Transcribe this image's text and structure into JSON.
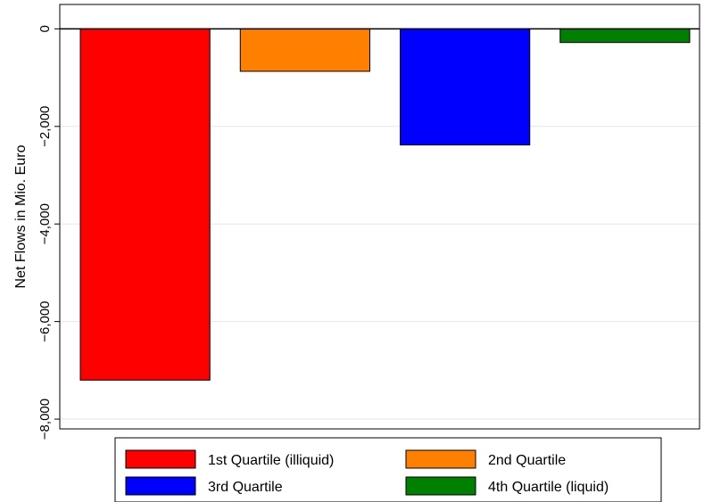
{
  "chart_data": {
    "type": "bar",
    "title": "",
    "xlabel": "",
    "ylabel": "Net Flows in Mio. Euro",
    "ylim": [
      -8200,
      500
    ],
    "yticks": [
      0,
      -2000,
      -4000,
      -6000,
      -8000
    ],
    "ytick_labels": [
      "0",
      "−2,000",
      "−4,000",
      "−6,000",
      "−8,000"
    ],
    "grid": true,
    "legend_position": "bottom",
    "series": [
      {
        "name": "1st Quartile (illiquid)",
        "value": -7200,
        "color": "#ff0000"
      },
      {
        "name": "2nd Quartile",
        "value": -870,
        "color": "#ff8000"
      },
      {
        "name": "3rd Quartile",
        "value": -2380,
        "color": "#0000ff"
      },
      {
        "name": "4th Quartile (liquid)",
        "value": -280,
        "color": "#008000"
      }
    ]
  }
}
